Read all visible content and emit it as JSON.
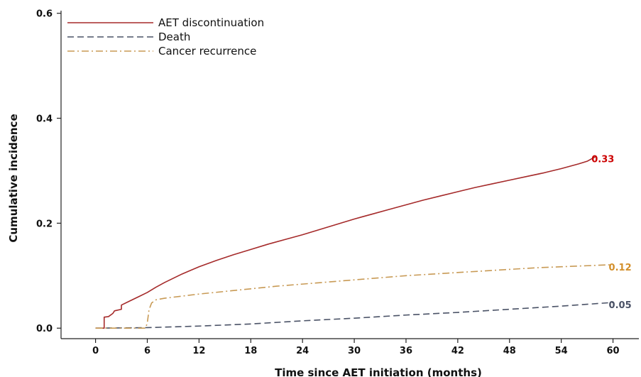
{
  "chart_data": {
    "type": "line",
    "xlabel": "Time since AET initiation (months)",
    "ylabel": "Cumulative incidence",
    "xlim": [
      -4,
      63
    ],
    "ylim": [
      -0.02,
      0.605
    ],
    "xticks": [
      0,
      6,
      12,
      18,
      24,
      30,
      36,
      42,
      48,
      54,
      60
    ],
    "xtick_labels": [
      "0",
      "6",
      "12",
      "18",
      "24",
      "30",
      "36",
      "42",
      "48",
      "54",
      "60"
    ],
    "yticks": [
      0.0,
      0.2,
      0.4,
      0.6
    ],
    "ytick_labels": [
      "0.0",
      "0.2",
      "0.4",
      "0.6"
    ],
    "grid": false,
    "legend_position": "top-left",
    "series": [
      {
        "name": "AET discontinuation",
        "color": "#a52a2a",
        "dash": "solid",
        "end_label": "0.33",
        "end_label_color": "#cc0000",
        "x": [
          0,
          1,
          1,
          1.5,
          2,
          2.2,
          3,
          3,
          4,
          5,
          6,
          7,
          8,
          10,
          12,
          14,
          16,
          18,
          20,
          22,
          24,
          26,
          28,
          30,
          32,
          34,
          36,
          38,
          40,
          42,
          44,
          46,
          48,
          50,
          52,
          54,
          56,
          57,
          58
        ],
        "y": [
          0,
          0,
          0.021,
          0.022,
          0.028,
          0.033,
          0.036,
          0.044,
          0.052,
          0.06,
          0.068,
          0.078,
          0.087,
          0.103,
          0.117,
          0.129,
          0.14,
          0.15,
          0.16,
          0.169,
          0.178,
          0.188,
          0.198,
          0.208,
          0.217,
          0.226,
          0.235,
          0.244,
          0.252,
          0.26,
          0.268,
          0.275,
          0.282,
          0.289,
          0.296,
          0.304,
          0.313,
          0.318,
          0.327
        ]
      },
      {
        "name": "Death",
        "color": "#4a5266",
        "dash": "dashed",
        "end_label": "0.05",
        "end_label_color": "#4a5266",
        "x": [
          0,
          6,
          12,
          18,
          24,
          30,
          36,
          42,
          48,
          54,
          60
        ],
        "y": [
          0,
          0.001,
          0.004,
          0.008,
          0.014,
          0.019,
          0.025,
          0.03,
          0.036,
          0.042,
          0.049
        ]
      },
      {
        "name": "Cancer recurrence",
        "color": "#c89a55",
        "dash": "dashdot",
        "end_label": "0.12",
        "end_label_color": "#d38f2b",
        "x": [
          0,
          5.8,
          6.0,
          6.2,
          6.5,
          7,
          8,
          10,
          12,
          15,
          18,
          21,
          24,
          27,
          30,
          33,
          36,
          39,
          42,
          45,
          48,
          51,
          54,
          57,
          60
        ],
        "y": [
          0,
          0,
          0.01,
          0.035,
          0.048,
          0.054,
          0.057,
          0.061,
          0.065,
          0.07,
          0.075,
          0.08,
          0.084,
          0.088,
          0.092,
          0.096,
          0.1,
          0.103,
          0.106,
          0.109,
          0.112,
          0.115,
          0.117,
          0.119,
          0.121
        ]
      }
    ]
  }
}
